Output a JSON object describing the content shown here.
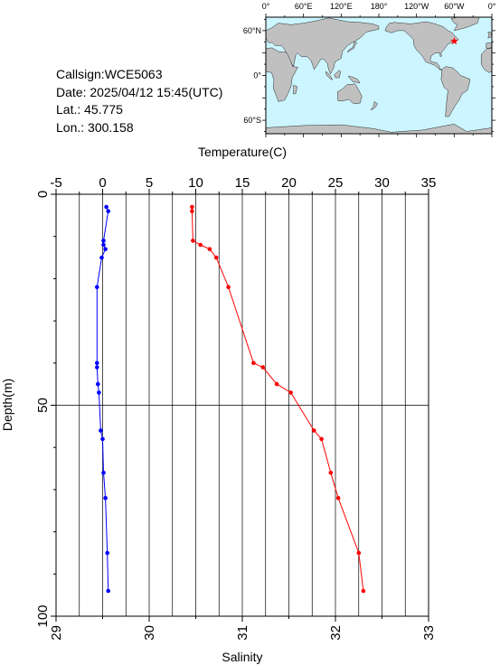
{
  "info": {
    "callsign": "Callsign:WCE5063",
    "date": "Date:  2025/04/12 15:45(UTC)",
    "lat": "Lat.:  45.775",
    "lon": "Lon.:  300.158"
  },
  "map": {
    "lon_labels": [
      "0°",
      "60°E",
      "120°E",
      "180°",
      "120°W",
      "60°W",
      "0°"
    ],
    "lat_labels": [
      "60°N",
      "0°",
      "60°S"
    ],
    "ocean_color": "#ccf5ff",
    "land_color": "#c0c0c0",
    "marker_color": "#ff0000",
    "station": {
      "lon": 300.158,
      "lat": 45.775
    }
  },
  "chart_data": {
    "type": "line",
    "top_axis": {
      "label": "Temperature(C)",
      "range": [
        -5,
        35
      ],
      "ticks": [
        -5,
        0,
        5,
        10,
        15,
        20,
        25,
        30,
        35
      ]
    },
    "bottom_axis": {
      "label": "Salinity",
      "range": [
        29,
        33
      ],
      "ticks": [
        29,
        30,
        31,
        32,
        33
      ]
    },
    "y_axis": {
      "label": "Depth(m)",
      "range": [
        0,
        100
      ],
      "inverted": true,
      "ticks": [
        0,
        50,
        100
      ]
    },
    "grid": true,
    "series": [
      {
        "axis": "top",
        "color": "#0000ff",
        "points": [
          [
            0.4,
            3
          ],
          [
            0.6,
            4
          ],
          [
            0.1,
            11
          ],
          [
            0.1,
            12
          ],
          [
            0.3,
            13
          ],
          [
            -0.1,
            15
          ],
          [
            -0.6,
            22
          ],
          [
            -0.6,
            40
          ],
          [
            -0.6,
            41
          ],
          [
            -0.5,
            45
          ],
          [
            -0.4,
            47
          ],
          [
            -0.2,
            56
          ],
          [
            0.0,
            58
          ],
          [
            0.1,
            66
          ],
          [
            0.3,
            72
          ],
          [
            0.5,
            85
          ],
          [
            0.6,
            94
          ]
        ]
      },
      {
        "axis": "bottom",
        "color": "#ff0000",
        "points": [
          [
            30.46,
            3
          ],
          [
            30.46,
            4
          ],
          [
            30.47,
            11
          ],
          [
            30.55,
            12
          ],
          [
            30.65,
            13
          ],
          [
            30.72,
            15
          ],
          [
            30.85,
            22
          ],
          [
            31.12,
            40
          ],
          [
            31.22,
            41
          ],
          [
            31.37,
            45
          ],
          [
            31.52,
            47
          ],
          [
            31.77,
            56
          ],
          [
            31.85,
            58
          ],
          [
            31.95,
            66
          ],
          [
            32.03,
            72
          ],
          [
            32.25,
            85
          ],
          [
            32.3,
            94
          ]
        ]
      }
    ]
  }
}
